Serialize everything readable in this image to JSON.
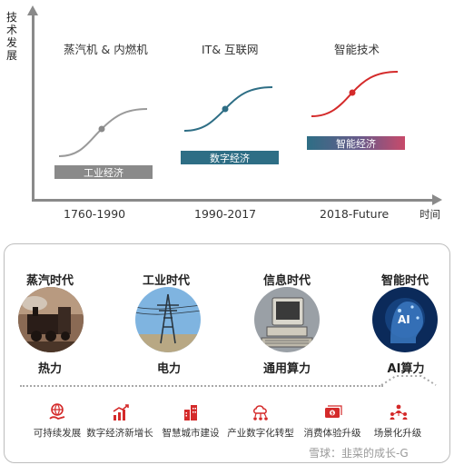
{
  "diagram": {
    "y_axis_label": "技术发展",
    "x_axis_label": "时间",
    "eras": [
      {
        "title": "蒸汽机 & 内燃机",
        "economy": "工业经济",
        "period": "1760-1990",
        "color": "#8a8a8a"
      },
      {
        "title": "IT& 互联网",
        "economy": "数字经济",
        "period": "1990-2017",
        "color": "#2e6e85"
      },
      {
        "title": "智能技术",
        "economy": "智能经济",
        "period": "2018-Future",
        "color": "#d42a2a"
      }
    ]
  },
  "ages": [
    {
      "name": "蒸汽时代",
      "power": "热力",
      "image": "steam-locomotive"
    },
    {
      "name": "工业时代",
      "power": "电力",
      "image": "power-tower"
    },
    {
      "name": "信息时代",
      "power": "通用算力",
      "image": "computer"
    },
    {
      "name": "智能时代",
      "power": "AI算力",
      "image": "ai-head"
    }
  ],
  "features": [
    {
      "label": "可持续发展",
      "icon": "globe-hand-icon"
    },
    {
      "label": "数字经济新增长",
      "icon": "chart-growth-icon"
    },
    {
      "label": "智慧城市建设",
      "icon": "city-building-icon"
    },
    {
      "label": "产业数字化转型",
      "icon": "network-cloud-icon"
    },
    {
      "label": "消费体验升级",
      "icon": "money-card-icon"
    },
    {
      "label": "场景化升级",
      "icon": "people-network-icon"
    }
  ],
  "watermark": "雪球：韭菜的成长-G",
  "colors": {
    "accent": "#d42a2a",
    "teal": "#2e6e85",
    "gray": "#8a8a8a"
  }
}
